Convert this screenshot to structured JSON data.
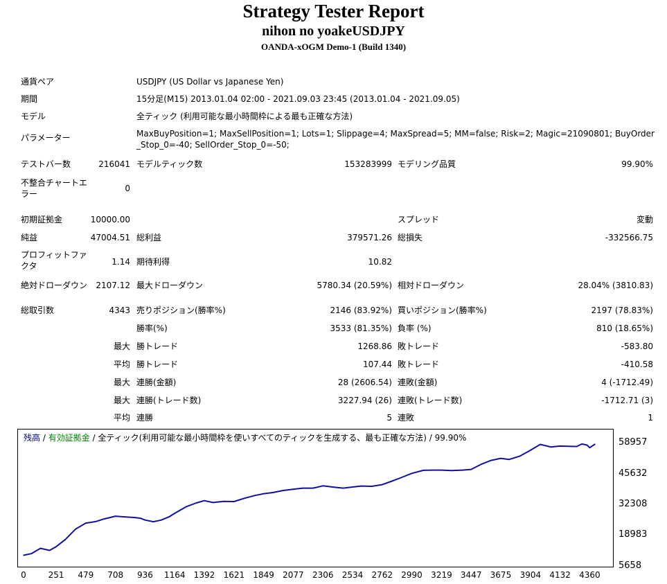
{
  "report": {
    "title": "Strategy Tester Report",
    "ea_name": "nihon no yoakeUSDJPY",
    "server": "OANDA-xOGM Demo-1 (Build 1340)"
  },
  "settings": {
    "symbol_label": "通貨ペア",
    "symbol_value": "USDJPY (US Dollar vs Japanese Yen)",
    "period_label": "期間",
    "period_value": "15分足(M15) 2013.01.04 02:00 - 2021.09.03 23:45 (2013.01.04 - 2021.09.05)",
    "model_label": "モデル",
    "model_value": "全ティック (利用可能な最小時間枠による最も正確な方法)",
    "params_label": "パラメーター",
    "params_value": "MaxBuyPosition=1; MaxSellPosition=1; Lots=1; Slippage=4; MaxSpread=5; MM=false; Risk=2; Magic=21090801; BuyOrder_Stop_0=-40; SellOrder_Stop_0=-50;"
  },
  "test": {
    "bars_label": "テストバー数",
    "bars_value": "216041",
    "ticks_label": "モデルティック数",
    "ticks_value": "153283999",
    "quality_label": "モデリング品質",
    "quality_value": "99.90%",
    "errors_label": "不整合チャートエラー",
    "errors_value": "0"
  },
  "results": {
    "deposit_label": "初期証拠金",
    "deposit_value": "10000.00",
    "spread_label": "スプレッド",
    "spread_value": "変動",
    "net_label": "純益",
    "net_value": "47004.51",
    "gross_profit_label": "総利益",
    "gross_profit_value": "379571.26",
    "gross_loss_label": "総損失",
    "gross_loss_value": "-332566.75",
    "pf_label": "プロフィットファクタ",
    "pf_value": "1.14",
    "expected_label": "期待利得",
    "expected_value": "10.82",
    "abs_dd_label": "絶対ドローダウン",
    "abs_dd_value": "2107.12",
    "max_dd_label": "最大ドローダウン",
    "max_dd_value": "5780.34 (20.59%)",
    "rel_dd_label": "相対ドローダウン",
    "rel_dd_value": "28.04% (3810.83)",
    "trades_label": "総取引数",
    "trades_value": "4343",
    "short_label": "売りポジション(勝率%)",
    "short_value": "2146 (83.92%)",
    "long_label": "買いポジション(勝率%)",
    "long_value": "2197 (78.83%)",
    "win_label": "勝率(%)",
    "win_value": "3533 (81.35%)",
    "loss_label": "負率 (%)",
    "loss_value": "810 (18.65%)",
    "largest": "最大",
    "average": "平均",
    "largest_win_label": "勝トレード",
    "largest_win_value": "1268.86",
    "largest_loss_label": "敗トレード",
    "largest_loss_value": "-583.80",
    "avg_win_label": "勝トレード",
    "avg_win_value": "107.44",
    "avg_loss_label": "敗トレード",
    "avg_loss_value": "-410.58",
    "max_consec_wins_label": "連勝(金額)",
    "max_consec_wins_value": "28 (2606.54)",
    "max_consec_loss_label": "連敗(金額)",
    "max_consec_loss_value": "4 (-1712.49)",
    "max_consec_profit_label": "連勝(トレード数)",
    "max_consec_profit_value": "3227.94 (26)",
    "max_consec_loss_trades_label": "連敗(トレード数)",
    "max_consec_loss_trades_value": "-1712.71 (3)",
    "avg_consec_wins_label": "連勝",
    "avg_consec_wins_value": "5",
    "avg_consec_loss_label": "連敗",
    "avg_consec_loss_value": "1"
  },
  "chart_legend": {
    "balance": "残高",
    "sep1": " / ",
    "equity": "有効証拠金",
    "rest": " / 全ティック(利用可能な最小時間枠を使いすべてのティックを生成する、最も正確な方法) / 99.90%"
  },
  "colors": {
    "balance": "#00008B",
    "equity": "#008000",
    "line": "#1010A0"
  },
  "chart_data": {
    "type": "line",
    "title": "",
    "xlabel": "",
    "ylabel": "",
    "y_ticks": [
      58957,
      45632,
      32308,
      18983,
      5658
    ],
    "x_ticks": [
      0,
      251,
      479,
      708,
      936,
      1164,
      1392,
      1621,
      1849,
      2077,
      2306,
      2534,
      2762,
      2990,
      3219,
      3447,
      3675,
      3904,
      4132,
      4360
    ],
    "xlim": [
      0,
      4500
    ],
    "ylim": [
      5658,
      62500
    ],
    "series": [
      {
        "x": [
          0,
          60,
          130,
          200,
          251,
          320,
          400,
          479,
          560,
          620,
          708,
          780,
          860,
          900,
          936,
          1000,
          1060,
          1120,
          1164,
          1250,
          1330,
          1392,
          1460,
          1540,
          1621,
          1700,
          1780,
          1849,
          1920,
          2000,
          2077,
          2150,
          2230,
          2306,
          2380,
          2460,
          2534,
          2600,
          2680,
          2762,
          2830,
          2900,
          2990,
          3080,
          3150,
          3219,
          3300,
          3380,
          3447,
          3520,
          3600,
          3675,
          3740,
          3820,
          3904,
          3980,
          4060,
          4132,
          4200,
          4260,
          4300,
          4340,
          4360,
          4400
        ],
        "values": [
          10300,
          11000,
          13300,
          12400,
          14000,
          17000,
          21600,
          24200,
          24900,
          26000,
          27200,
          26900,
          26600,
          26300,
          25500,
          24800,
          25500,
          26900,
          28400,
          31200,
          32900,
          33900,
          33100,
          33600,
          33500,
          34900,
          36100,
          36900,
          37400,
          38300,
          38800,
          39300,
          39300,
          40300,
          39800,
          39300,
          39800,
          40200,
          40100,
          40800,
          42200,
          43700,
          45700,
          47000,
          47100,
          47100,
          46900,
          47100,
          47400,
          49500,
          51300,
          52200,
          51700,
          53100,
          55700,
          58200,
          57100,
          57500,
          57400,
          57300,
          58400,
          57900,
          56800,
          58300
        ]
      }
    ]
  }
}
